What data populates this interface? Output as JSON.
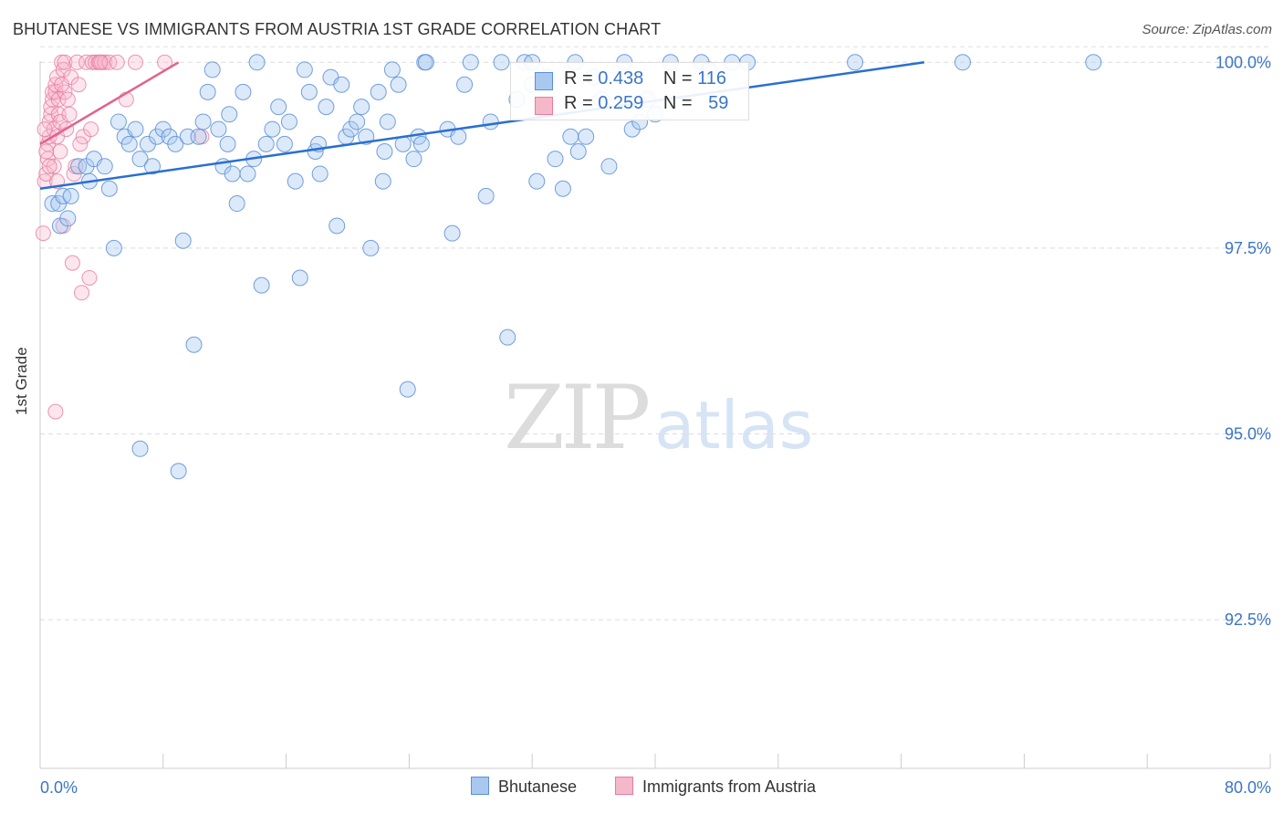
{
  "header": {
    "title": "BHUTANESE VS IMMIGRANTS FROM AUSTRIA 1ST GRADE CORRELATION CHART",
    "source": "Source: ZipAtlas.com"
  },
  "watermark": {
    "zip": "ZIP",
    "atlas": "atlas"
  },
  "legend": {
    "series1": {
      "r_label": "R = ",
      "r_value": "0.438",
      "n_label": "N = ",
      "n_value": "116"
    },
    "series2": {
      "r_label": "R = ",
      "r_value": "0.259",
      "n_label": "N = ",
      "n_value": "59"
    }
  },
  "colors": {
    "blue_fill": "#a8c8f0",
    "blue_stroke": "#5b8fd6",
    "blue_line": "#2a6fd0",
    "pink_fill": "#f5b8cb",
    "pink_stroke": "#e87ba0",
    "pink_line": "#e0638e",
    "axis_text": "#3a75c9",
    "grid": "#dddddd"
  },
  "chart_data": {
    "type": "scatter",
    "title": "BHUTANESE VS IMMIGRANTS FROM AUSTRIA 1ST GRADE CORRELATION CHART",
    "xlabel": "",
    "ylabel": "1st Grade",
    "xlim": [
      0,
      80
    ],
    "ylim": [
      90.5,
      100.2
    ],
    "x_tick_labels": [
      "0.0%",
      "80.0%"
    ],
    "y_ticks": [
      92.5,
      95.0,
      97.5,
      100.0
    ],
    "y_tick_labels": [
      "92.5%",
      "95.0%",
      "97.5%",
      "100.0%"
    ],
    "legend_position": "top-center",
    "series": [
      {
        "name": "Bhutanese",
        "R": 0.438,
        "N": 116,
        "trend": {
          "x": [
            0,
            57.5
          ],
          "y": [
            98.3,
            100.0
          ]
        },
        "points": [
          [
            0.8,
            98.1
          ],
          [
            1.2,
            98.1
          ],
          [
            1.5,
            98.2
          ],
          [
            2.0,
            98.2
          ],
          [
            1.3,
            97.8
          ],
          [
            1.8,
            97.9
          ],
          [
            2.5,
            98.6
          ],
          [
            3.0,
            98.6
          ],
          [
            3.5,
            98.7
          ],
          [
            4.2,
            98.6
          ],
          [
            3.2,
            98.4
          ],
          [
            4.5,
            98.3
          ],
          [
            4.8,
            97.5
          ],
          [
            5.1,
            99.2
          ],
          [
            5.5,
            99.0
          ],
          [
            5.8,
            98.9
          ],
          [
            6.2,
            99.1
          ],
          [
            6.5,
            98.7
          ],
          [
            7.0,
            98.9
          ],
          [
            7.3,
            98.6
          ],
          [
            7.6,
            99.0
          ],
          [
            8.0,
            99.1
          ],
          [
            8.4,
            99.0
          ],
          [
            8.8,
            98.9
          ],
          [
            9.3,
            97.6
          ],
          [
            9.6,
            99.0
          ],
          [
            10.0,
            96.2
          ],
          [
            10.3,
            99.0
          ],
          [
            10.6,
            99.2
          ],
          [
            10.9,
            99.6
          ],
          [
            11.2,
            99.9
          ],
          [
            11.6,
            99.1
          ],
          [
            11.9,
            98.6
          ],
          [
            12.2,
            98.9
          ],
          [
            12.5,
            98.5
          ],
          [
            12.8,
            98.1
          ],
          [
            13.2,
            99.6
          ],
          [
            13.5,
            98.5
          ],
          [
            13.9,
            98.7
          ],
          [
            14.1,
            100.0
          ],
          [
            14.4,
            97.0
          ],
          [
            14.7,
            98.9
          ],
          [
            15.1,
            99.1
          ],
          [
            15.5,
            99.4
          ],
          [
            15.9,
            98.9
          ],
          [
            16.2,
            99.2
          ],
          [
            16.6,
            98.4
          ],
          [
            16.9,
            97.1
          ],
          [
            17.2,
            99.9
          ],
          [
            17.5,
            99.6
          ],
          [
            17.9,
            98.8
          ],
          [
            18.2,
            98.5
          ],
          [
            18.6,
            99.4
          ],
          [
            18.9,
            99.8
          ],
          [
            19.3,
            97.8
          ],
          [
            19.6,
            99.7
          ],
          [
            19.9,
            99.0
          ],
          [
            20.2,
            99.1
          ],
          [
            20.6,
            99.2
          ],
          [
            20.9,
            99.4
          ],
          [
            21.2,
            99.0
          ],
          [
            21.5,
            97.5
          ],
          [
            22.0,
            99.6
          ],
          [
            22.3,
            98.4
          ],
          [
            22.6,
            99.2
          ],
          [
            22.9,
            99.9
          ],
          [
            23.3,
            99.7
          ],
          [
            23.6,
            98.9
          ],
          [
            23.9,
            95.6
          ],
          [
            24.3,
            98.7
          ],
          [
            24.6,
            99.0
          ],
          [
            25.0,
            100.0
          ],
          [
            25.1,
            100.0
          ],
          [
            26.5,
            99.1
          ],
          [
            26.8,
            97.7
          ],
          [
            27.2,
            99.0
          ],
          [
            27.6,
            99.7
          ],
          [
            28.0,
            100.0
          ],
          [
            29.0,
            98.2
          ],
          [
            29.3,
            99.2
          ],
          [
            30.0,
            100.0
          ],
          [
            30.4,
            96.3
          ],
          [
            31.0,
            99.5
          ],
          [
            31.5,
            100.0
          ],
          [
            32.0,
            99.7
          ],
          [
            32.3,
            98.4
          ],
          [
            33.0,
            99.8
          ],
          [
            33.5,
            98.7
          ],
          [
            34.0,
            98.3
          ],
          [
            34.5,
            99.0
          ],
          [
            35.0,
            98.8
          ],
          [
            35.5,
            99.0
          ],
          [
            36.0,
            99.8
          ],
          [
            36.5,
            99.5
          ],
          [
            37.0,
            98.6
          ],
          [
            38.0,
            100.0
          ],
          [
            38.5,
            99.1
          ],
          [
            39.0,
            99.2
          ],
          [
            39.5,
            99.5
          ],
          [
            40.0,
            99.3
          ],
          [
            41.0,
            100.0
          ],
          [
            43.0,
            100.0
          ],
          [
            45.0,
            100.0
          ],
          [
            46.0,
            100.0
          ],
          [
            53.0,
            100.0
          ],
          [
            60.0,
            100.0
          ],
          [
            68.5,
            100.0
          ],
          [
            34.8,
            100.0
          ],
          [
            32.0,
            100.0
          ],
          [
            43.5,
            99.9
          ],
          [
            22.4,
            98.8
          ],
          [
            24.8,
            98.9
          ],
          [
            18.1,
            98.9
          ],
          [
            12.3,
            99.3
          ],
          [
            9.0,
            94.5
          ],
          [
            6.5,
            94.8
          ]
        ]
      },
      {
        "name": "Immigrants from Austria",
        "R": 0.259,
        "N": 59,
        "trend": {
          "x": [
            0,
            9.0
          ],
          "y": [
            98.9,
            100.0
          ]
        },
        "points": [
          [
            0.2,
            97.7
          ],
          [
            0.3,
            98.4
          ],
          [
            0.4,
            98.5
          ],
          [
            0.5,
            98.7
          ],
          [
            0.5,
            98.9
          ],
          [
            0.6,
            99.0
          ],
          [
            0.6,
            99.2
          ],
          [
            0.7,
            99.3
          ],
          [
            0.7,
            99.4
          ],
          [
            0.8,
            99.5
          ],
          [
            0.8,
            99.6
          ],
          [
            0.9,
            98.6
          ],
          [
            0.9,
            99.1
          ],
          [
            1.0,
            99.6
          ],
          [
            1.0,
            99.7
          ],
          [
            1.1,
            99.8
          ],
          [
            1.1,
            99.0
          ],
          [
            1.2,
            99.3
          ],
          [
            1.2,
            99.5
          ],
          [
            1.3,
            99.2
          ],
          [
            1.3,
            98.8
          ],
          [
            1.4,
            100.0
          ],
          [
            1.5,
            99.9
          ],
          [
            1.5,
            97.8
          ],
          [
            1.6,
            100.0
          ],
          [
            1.6,
            99.6
          ],
          [
            1.7,
            99.1
          ],
          [
            1.8,
            99.5
          ],
          [
            1.9,
            99.3
          ],
          [
            2.0,
            99.8
          ],
          [
            2.1,
            97.3
          ],
          [
            2.2,
            98.5
          ],
          [
            2.3,
            98.6
          ],
          [
            2.4,
            100.0
          ],
          [
            2.5,
            99.7
          ],
          [
            2.7,
            96.9
          ],
          [
            2.8,
            99.0
          ],
          [
            3.0,
            100.0
          ],
          [
            3.2,
            97.1
          ],
          [
            3.3,
            99.1
          ],
          [
            3.4,
            100.0
          ],
          [
            3.6,
            100.0
          ],
          [
            3.8,
            100.0
          ],
          [
            4.0,
            100.0
          ],
          [
            4.2,
            100.0
          ],
          [
            4.5,
            100.0
          ],
          [
            5.0,
            100.0
          ],
          [
            5.6,
            99.5
          ],
          [
            6.2,
            100.0
          ],
          [
            1.0,
            95.3
          ],
          [
            1.4,
            99.7
          ],
          [
            0.4,
            98.8
          ],
          [
            0.6,
            98.6
          ],
          [
            1.1,
            98.4
          ],
          [
            2.6,
            98.9
          ],
          [
            3.9,
            100.0
          ],
          [
            8.1,
            100.0
          ],
          [
            10.5,
            99.0
          ],
          [
            0.3,
            99.1
          ]
        ]
      }
    ]
  },
  "axes": {
    "x_left_label": "0.0%",
    "x_right_label": "80.0%"
  },
  "bottom_legend": {
    "series1_label": "Bhutanese",
    "series2_label": "Immigrants from Austria"
  }
}
